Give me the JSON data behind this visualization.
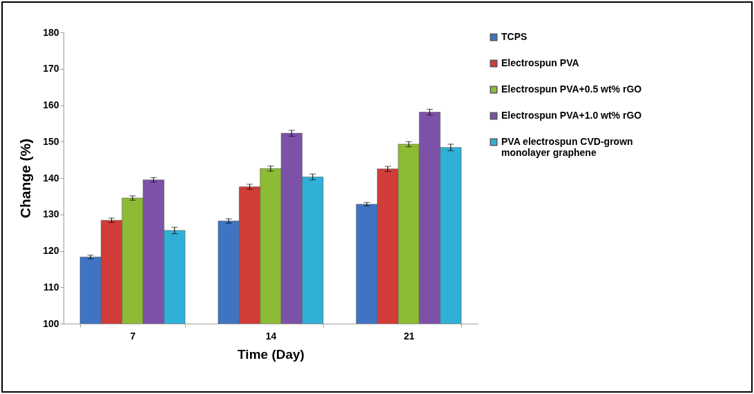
{
  "chart_data": {
    "type": "bar",
    "xlabel": "Time (Day)",
    "ylabel": "Change (%)",
    "categories": [
      "7",
      "14",
      "21"
    ],
    "series": [
      {
        "name": "TCPS",
        "color": "#3f74c2",
        "values": [
          118.3,
          128.2,
          132.8
        ],
        "errors": [
          0.5,
          0.6,
          0.5
        ]
      },
      {
        "name": "Electrospun PVA",
        "color": "#d03c37",
        "values": [
          128.4,
          137.6,
          142.5
        ],
        "errors": [
          0.6,
          0.7,
          0.7
        ]
      },
      {
        "name": "Electrospun PVA+0.5 wt% rGO",
        "color": "#8dbb35",
        "values": [
          134.5,
          142.6,
          149.3
        ],
        "errors": [
          0.6,
          0.7,
          0.7
        ]
      },
      {
        "name": "Electrospun PVA+1.0 wt% rGO",
        "color": "#7c52a8",
        "values": [
          139.5,
          152.3,
          158.1
        ],
        "errors": [
          0.6,
          0.8,
          0.8
        ]
      },
      {
        "name": "PVA electrospun CVD-grown monolayer graphene",
        "color": "#30b0d6",
        "values": [
          125.6,
          140.3,
          148.4
        ],
        "errors": [
          0.9,
          0.8,
          0.9
        ]
      }
    ],
    "ylim": [
      100,
      180
    ],
    "yticks": [
      100,
      110,
      120,
      130,
      140,
      150,
      160,
      170,
      180
    ],
    "grid": false,
    "legend": "right"
  }
}
